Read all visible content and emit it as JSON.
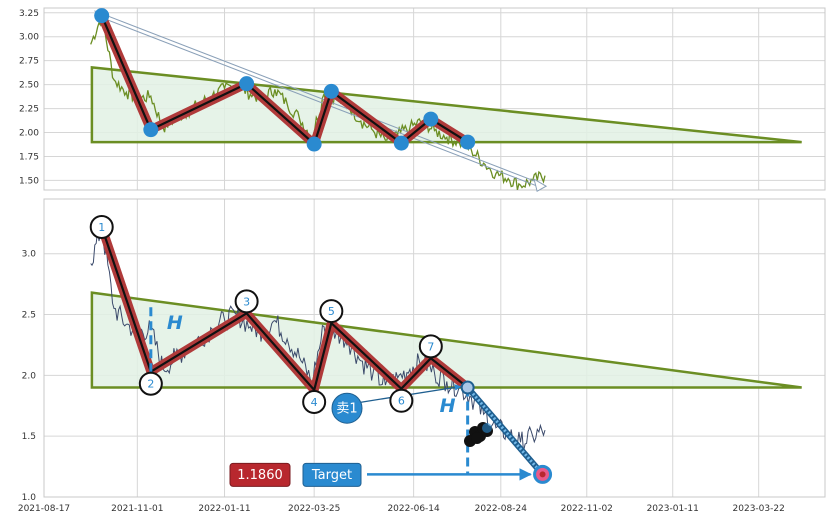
{
  "chart_data": {
    "type": "line",
    "pattern": "descending triangle",
    "colors": {
      "price_top": "#6b8e23",
      "price_bottom": "#3b4a6b",
      "zigzag_outer": "#b03a3a",
      "zigzag_inner": "#111111",
      "triangle_line": "#6b8e23",
      "triangle_fill": "#e2f1e4",
      "marker_blue": "#2a8ad0",
      "badge_red": "#b8282e",
      "badge_blue": "#2a8ad0"
    },
    "top_panel": {
      "ylim": [
        1.4,
        3.3
      ],
      "y_ticks": [
        "3.25",
        "3.00",
        "2.75",
        "2.50",
        "2.25",
        "2.00",
        "1.75",
        "1.50"
      ],
      "y_tick_values": [
        3.25,
        3.0,
        2.75,
        2.5,
        2.25,
        2.0,
        1.75,
        1.5
      ],
      "grid": true
    },
    "bottom_panel": {
      "ylim": [
        1.0,
        3.45
      ],
      "y_ticks": [
        "3.0",
        "2.5",
        "2.0",
        "1.5",
        "1.0"
      ],
      "y_tick_values": [
        3.0,
        2.5,
        2.0,
        1.5,
        1.0
      ],
      "grid": true
    },
    "x_tick_labels": [
      "2021-08-17",
      "2021-11-01",
      "2022-01-11",
      "2022-03-25",
      "2022-06-14",
      "2022-08-24",
      "2022-11-02",
      "2023-01-11",
      "2023-03-22"
    ],
    "x_tick_dates": [
      "2021-08-17",
      "2021-11-01",
      "2022-01-11",
      "2022-03-25",
      "2022-06-14",
      "2022-08-24",
      "2022-11-02",
      "2023-01-11",
      "2023-03-22"
    ],
    "x_range": [
      "2021-08-17",
      "2023-05-15"
    ],
    "price": {
      "x": [
        "2021-09-24",
        "2021-10-03",
        "2021-10-13",
        "2021-10-23",
        "2021-11-02",
        "2021-11-12",
        "2021-11-22",
        "2021-12-02",
        "2021-12-12",
        "2021-12-22",
        "2022-01-01",
        "2022-01-11",
        "2022-01-21",
        "2022-02-01",
        "2022-02-11",
        "2022-02-21",
        "2022-03-03",
        "2022-03-13",
        "2022-03-23",
        "2022-04-02",
        "2022-04-12",
        "2022-04-22",
        "2022-05-02",
        "2022-05-12",
        "2022-05-22",
        "2022-06-01",
        "2022-06-11",
        "2022-06-21",
        "2022-07-01",
        "2022-07-11",
        "2022-07-21",
        "2022-07-31",
        "2022-08-10",
        "2022-08-20",
        "2022-08-30",
        "2022-09-09",
        "2022-09-19",
        "2022-09-29"
      ],
      "y": [
        2.92,
        3.22,
        2.55,
        2.42,
        2.35,
        2.38,
        2.05,
        2.15,
        2.22,
        2.3,
        2.38,
        2.46,
        2.5,
        2.4,
        2.36,
        2.45,
        2.3,
        2.15,
        1.95,
        2.4,
        2.35,
        2.28,
        2.12,
        2.02,
        1.92,
        1.98,
        2.05,
        2.12,
        2.02,
        1.95,
        1.9,
        1.82,
        1.68,
        1.57,
        1.52,
        1.45,
        1.5,
        1.55
      ]
    },
    "zigzag": {
      "labels": [
        "1",
        "2",
        "3",
        "4",
        "5",
        "6",
        "7",
        ""
      ],
      "x": [
        "2021-10-03",
        "2021-11-12",
        "2022-01-29",
        "2022-03-25",
        "2022-04-08",
        "2022-06-04",
        "2022-06-28",
        "2022-07-28"
      ],
      "y": [
        3.22,
        2.03,
        2.51,
        1.88,
        2.43,
        1.89,
        2.14,
        1.9
      ]
    },
    "triangle": {
      "x_start": "2021-09-25",
      "x_end": "2023-04-26",
      "upper_start": 2.68,
      "upper_end": 1.9,
      "base": 1.9
    },
    "projection": {
      "from": {
        "x": "2022-07-28",
        "y": 1.9
      },
      "to": {
        "x": "2022-09-27",
        "y": 1.186
      },
      "height_label": "H",
      "sell_label": "卖1",
      "target_label": "Target",
      "target_value": "1.1860"
    },
    "trend_arrow_top": {
      "from": {
        "x": "2021-09-27",
        "y": 3.25
      },
      "to": {
        "x": "2022-09-25",
        "y": 1.45
      }
    }
  }
}
